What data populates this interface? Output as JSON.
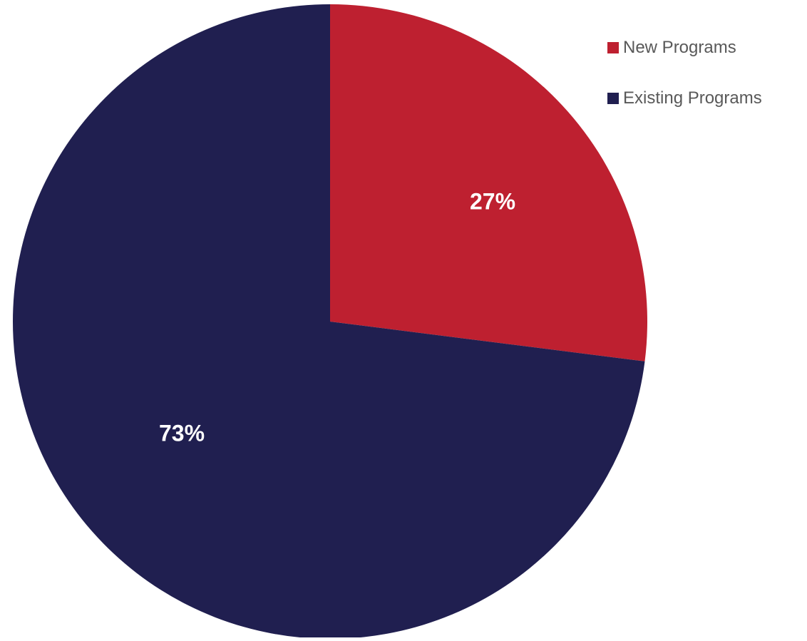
{
  "chart_data": {
    "type": "pie",
    "title": "",
    "categories": [
      "New Programs",
      "Existing Programs"
    ],
    "values": [
      27,
      73
    ],
    "unit": "%",
    "data_labels": [
      "27%",
      "73%"
    ],
    "colors": [
      "#be2030",
      "#201f50"
    ],
    "start_angle_deg": 0,
    "direction": "clockwise",
    "legend_position": "top-right"
  }
}
